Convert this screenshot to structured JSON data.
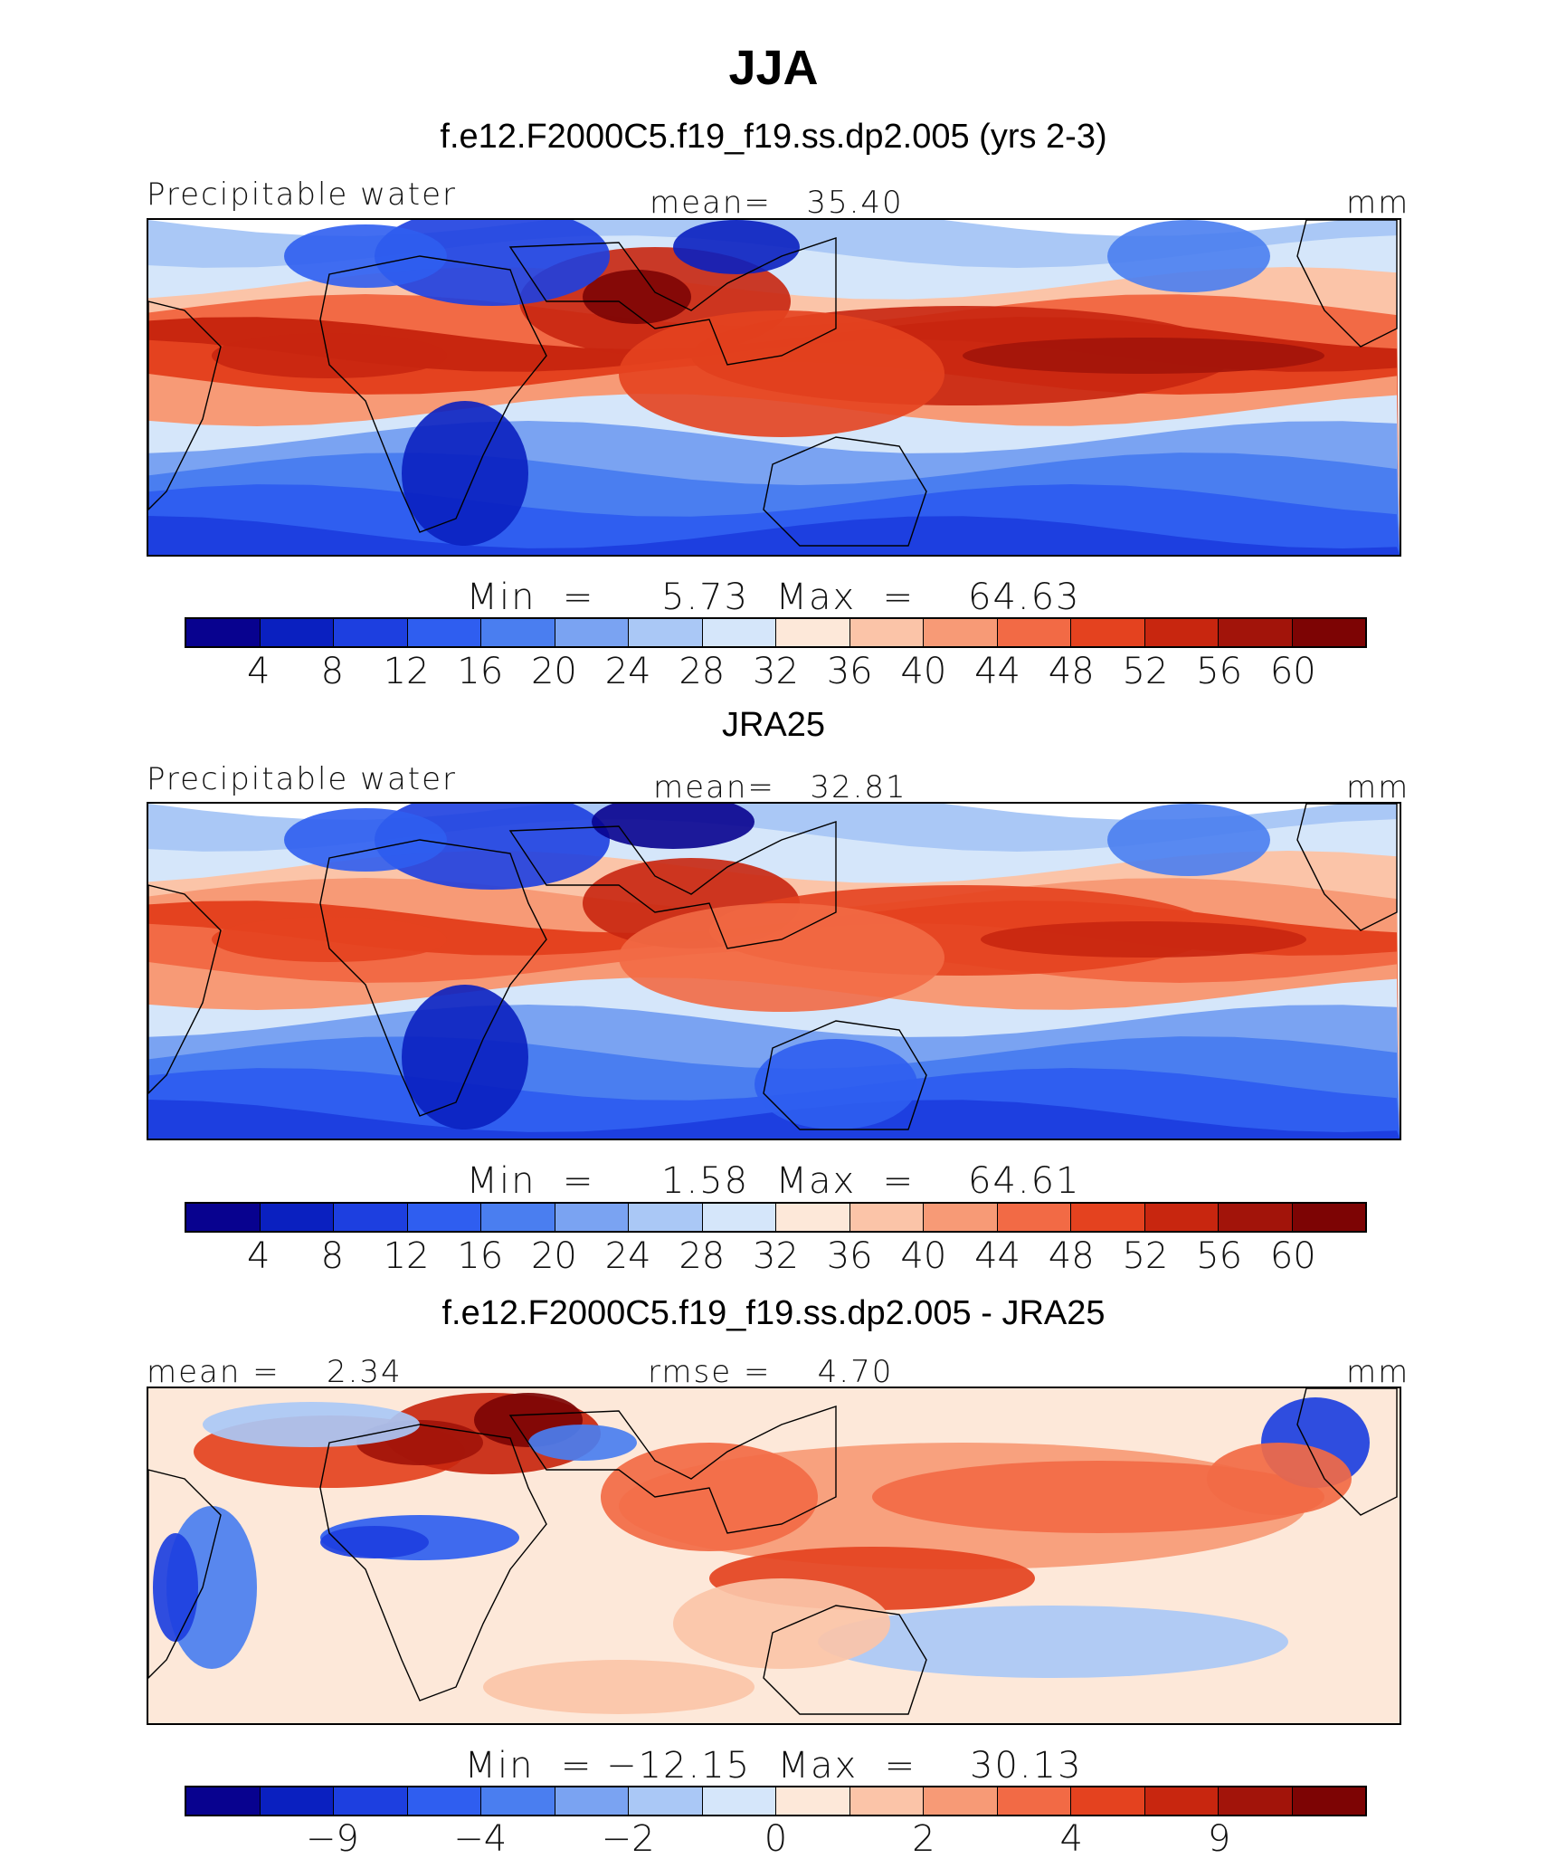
{
  "title": "JJA",
  "palette": [
    "#08028f",
    "#0a20c0",
    "#1d3fe0",
    "#2f5ef0",
    "#4a7ef0",
    "#7aa3f2",
    "#aac8f6",
    "#d5e6fa",
    "#fde8d9",
    "#fbc4a8",
    "#f79a76",
    "#f26a45",
    "#e4421f",
    "#c8260f",
    "#a2140a",
    "#7d0404"
  ],
  "panels": [
    {
      "title": "f.e12.F2000C5.f19_f19.ss.dp2.005 (yrs 2-3)",
      "left_label": "Precipitable water",
      "center_label": "mean=   35.40",
      "right_label": "mm",
      "minmax": "Min  =     5.73  Max  =    64.63",
      "ticks": [
        "4",
        "8",
        "12",
        "16",
        "20",
        "24",
        "28",
        "32",
        "36",
        "40",
        "44",
        "48",
        "52",
        "56",
        "60"
      ]
    },
    {
      "title": "JRA25",
      "left_label": "Precipitable water",
      "center_label": "mean=   32.81",
      "right_label": "mm",
      "minmax": "Min  =     1.58  Max  =    64.61",
      "ticks": [
        "4",
        "8",
        "12",
        "16",
        "20",
        "24",
        "28",
        "32",
        "36",
        "40",
        "44",
        "48",
        "52",
        "56",
        "60"
      ]
    },
    {
      "title": "f.e12.F2000C5.f19_f19.ss.dp2.005 - JRA25",
      "left_label": "mean =    2.34",
      "center_label": "rmse =    4.70",
      "right_label": "mm",
      "minmax": "Min  = −12.15  Max  =    30.13",
      "ticks": [
        "",
        "−9",
        "",
        "−4",
        "",
        "−2",
        "",
        "0",
        "",
        "2",
        "",
        "4",
        "",
        "9",
        ""
      ]
    }
  ]
}
